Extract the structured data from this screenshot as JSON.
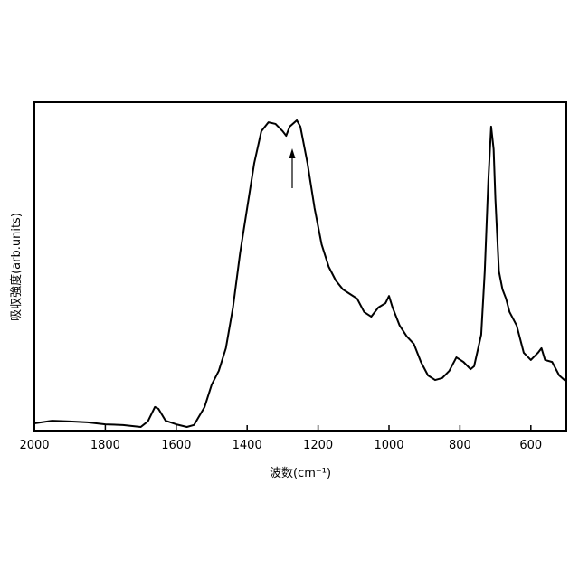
{
  "chart_data": {
    "type": "line",
    "x_label": "波数(cm⁻¹)",
    "y_label": "吸収強度(arb.units)",
    "xlim": [
      2000,
      500
    ],
    "ylim": [
      0,
      100
    ],
    "xticks": [
      2000,
      1800,
      1600,
      1400,
      1200,
      1000,
      800,
      600
    ],
    "x": [
      2000,
      1950,
      1900,
      1850,
      1800,
      1750,
      1700,
      1680,
      1660,
      1650,
      1630,
      1600,
      1570,
      1550,
      1520,
      1500,
      1480,
      1460,
      1440,
      1420,
      1400,
      1380,
      1360,
      1340,
      1320,
      1300,
      1290,
      1280,
      1260,
      1250,
      1230,
      1210,
      1190,
      1170,
      1150,
      1130,
      1110,
      1090,
      1070,
      1050,
      1030,
      1010,
      1000,
      990,
      970,
      950,
      930,
      910,
      890,
      870,
      850,
      830,
      810,
      790,
      770,
      760,
      740,
      730,
      720,
      712,
      705,
      700,
      690,
      680,
      670,
      660,
      640,
      620,
      600,
      580,
      570,
      560,
      540,
      520,
      500
    ],
    "series": [
      {
        "color": "#000000",
        "values": [
          2.2,
          3.0,
          2.8,
          2.5,
          1.9,
          1.7,
          1.1,
          2.8,
          7.2,
          6.6,
          3.0,
          1.9,
          1.1,
          1.7,
          7.2,
          14.0,
          18.2,
          25.1,
          37.5,
          54.0,
          67.8,
          81.5,
          91.2,
          93.9,
          93.4,
          91.2,
          89.8,
          92.6,
          94.5,
          92.6,
          81.5,
          67.8,
          56.7,
          49.9,
          45.7,
          43.0,
          41.6,
          40.2,
          36.1,
          34.7,
          37.5,
          38.8,
          41.0,
          37.5,
          32.0,
          28.7,
          26.4,
          20.9,
          16.8,
          15.4,
          16.0,
          18.2,
          22.3,
          20.9,
          18.7,
          19.6,
          29.2,
          48.5,
          76.0,
          92.6,
          85.7,
          70.5,
          48.5,
          43.0,
          40.2,
          36.1,
          32.0,
          23.7,
          21.5,
          23.7,
          25.1,
          21.5,
          20.9,
          16.8,
          14.9
        ]
      }
    ]
  }
}
